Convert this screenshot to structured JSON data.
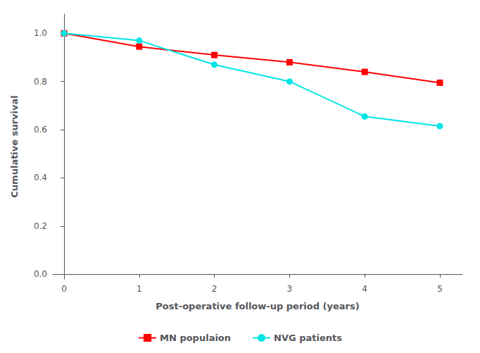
{
  "chart_data": {
    "type": "line",
    "x": [
      0,
      1,
      2,
      3,
      4,
      5
    ],
    "series": [
      {
        "name": "MN populaion",
        "color": "#ff0000",
        "marker": "square",
        "values": [
          1.0,
          0.945,
          0.91,
          0.88,
          0.84,
          0.795
        ]
      },
      {
        "name": "NVG patients",
        "color": "#00e5e5",
        "marker": "circle",
        "values": [
          1.0,
          0.97,
          0.87,
          0.8,
          0.655,
          0.615
        ]
      }
    ],
    "xlabel": "Post-operative follow-up period (years)",
    "ylabel": "Cumulative survival",
    "xlim": [
      -0.15,
      5.3
    ],
    "xticks": [
      0,
      1,
      2,
      3,
      4,
      5
    ],
    "ylim": [
      -0.02,
      1.08
    ],
    "yticks": [
      {
        "value": 0.0,
        "label": "0.0"
      },
      {
        "value": 0.2,
        "label": "0.2"
      },
      {
        "value": 0.4,
        "label": "0.4"
      },
      {
        "value": 0.6,
        "label": "0.6"
      },
      {
        "value": 0.8,
        "label": "0.8"
      },
      {
        "value": 1.0,
        "label": "1.0"
      }
    ],
    "grid": false,
    "legend": "bottom"
  }
}
